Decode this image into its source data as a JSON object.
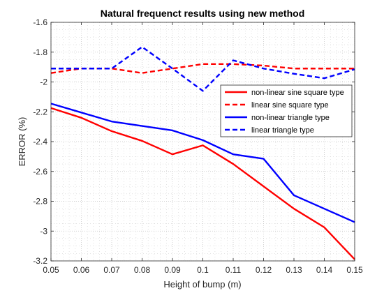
{
  "chart_data": {
    "type": "line",
    "title": "Natural frequenct results using new method",
    "xlabel": "Height of bump (m)",
    "ylabel": "ERROR (%)",
    "xlim": [
      0.05,
      0.15
    ],
    "ylim": [
      -3.2,
      -1.6
    ],
    "x": [
      0.05,
      0.06,
      0.07,
      0.08,
      0.09,
      0.1,
      0.11,
      0.12,
      0.13,
      0.14,
      0.15
    ],
    "x_tick_labels": [
      "0.05",
      "0.06",
      "0.07",
      "0.08",
      "0.09",
      "0.1",
      "0.11",
      "0.12",
      "0.13",
      "0.14",
      "0.15"
    ],
    "y_ticks": [
      -3.2,
      -3.0,
      -2.8,
      -2.6,
      -2.4,
      -2.2,
      -2.0,
      -1.8,
      -1.6
    ],
    "y_tick_labels": [
      "-3.2",
      "-3",
      "-2.8",
      "-2.6",
      "-2.4",
      "-2.2",
      "-2",
      "-1.8",
      "-1.6"
    ],
    "grid": "major and minor, dotted",
    "legend_position": "right, upper middle",
    "series": [
      {
        "name": "non-linear sine square type",
        "color": "#ff0000",
        "style": "solid",
        "values": [
          -2.175,
          -2.24,
          -2.33,
          -2.395,
          -2.485,
          -2.425,
          -2.55,
          -2.7,
          -2.85,
          -2.975,
          -3.19
        ]
      },
      {
        "name": "linear sine square type",
        "color": "#ff0000",
        "style": "dashed",
        "values": [
          -1.94,
          -1.91,
          -1.91,
          -1.94,
          -1.91,
          -1.88,
          -1.88,
          -1.89,
          -1.91,
          -1.91,
          -1.91
        ]
      },
      {
        "name": "non-linear triangle type",
        "color": "#0000ff",
        "style": "solid",
        "values": [
          -2.145,
          -2.205,
          -2.265,
          -2.295,
          -2.325,
          -2.39,
          -2.485,
          -2.515,
          -2.76,
          -2.85,
          -2.94
        ]
      },
      {
        "name": "linear triangle type",
        "color": "#0000ff",
        "style": "dashed",
        "values": [
          -1.91,
          -1.91,
          -1.91,
          -1.765,
          -1.91,
          -2.06,
          -1.855,
          -1.91,
          -1.945,
          -1.975,
          -1.915
        ]
      }
    ]
  }
}
